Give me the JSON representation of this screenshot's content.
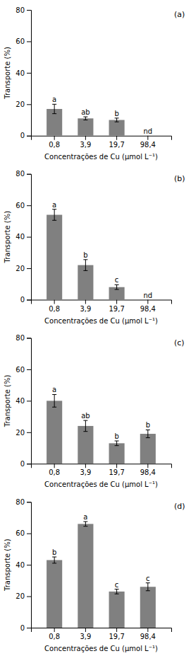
{
  "chart_data": [
    {
      "type": "bar",
      "title": "(a)",
      "xlabel": "Concentrações de Cu (μmol L⁻¹)",
      "ylabel": "Transporte (%)",
      "categories": [
        "0,8",
        "3,9",
        "19,7",
        "98,4"
      ],
      "values": [
        17,
        11,
        10,
        null
      ],
      "errors": [
        3.0,
        1.0,
        1.2,
        null
      ],
      "annotations": [
        "a",
        "ab",
        "b",
        "nd"
      ],
      "color": "#808080",
      "ylim": [
        0,
        80
      ],
      "yticks": [
        0,
        20,
        40,
        60,
        80
      ]
    },
    {
      "type": "bar",
      "title": "(b)",
      "xlabel": "Concentrações de Cu (μmol L⁻¹)",
      "ylabel": "Transporte (%)",
      "categories": [
        "0,8",
        "3,9",
        "19,7",
        "98,4"
      ],
      "values": [
        54,
        22,
        8,
        null
      ],
      "errors": [
        3.5,
        3.5,
        1.5,
        null
      ],
      "annotations": [
        "a",
        "b",
        "c",
        "nd"
      ],
      "color": "#808080",
      "ylim": [
        0,
        80
      ],
      "yticks": [
        0,
        20,
        40,
        60,
        80
      ]
    },
    {
      "type": "bar",
      "title": "(c)",
      "xlabel": "Concentrações de Cu (μmol L⁻¹)",
      "ylabel": "Transporte (%)",
      "categories": [
        "0,8",
        "3,9",
        "19,7",
        "98,4"
      ],
      "values": [
        40,
        24,
        13,
        19
      ],
      "errors": [
        4.0,
        3.5,
        1.5,
        2.5
      ],
      "annotations": [
        "a",
        "ab",
        "b",
        "b"
      ],
      "color": "#808080",
      "ylim": [
        0,
        80
      ],
      "yticks": [
        0,
        20,
        40,
        60,
        80
      ]
    },
    {
      "type": "bar",
      "title": "(d)",
      "xlabel": "Concentrações de Cu (μmol L⁻¹)",
      "ylabel": "Transporte (%)",
      "categories": [
        "0,8",
        "3,9",
        "19,7",
        "98,4"
      ],
      "values": [
        43,
        66,
        23,
        26
      ],
      "errors": [
        2.0,
        1.5,
        1.5,
        2.5
      ],
      "annotations": [
        "b",
        "a",
        "c",
        "c"
      ],
      "color": "#808080",
      "ylim": [
        0,
        80
      ],
      "yticks": [
        0,
        20,
        40,
        60,
        80
      ]
    }
  ]
}
